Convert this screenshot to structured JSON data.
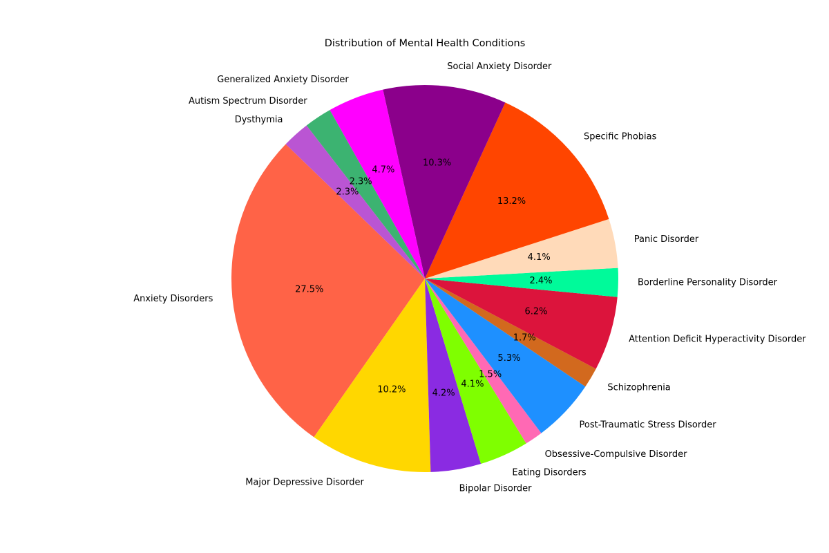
{
  "chart_data": {
    "type": "pie",
    "title": "Distribution of Mental Health Conditions",
    "start_angle_deg": 136,
    "direction": "counterclockwise",
    "slices": [
      {
        "label": "Anxiety Disorders",
        "value": 27.5,
        "pct_label": "27.5%",
        "color": "#FF6347"
      },
      {
        "label": "Major Depressive Disorder",
        "value": 10.2,
        "pct_label": "10.2%",
        "color": "#FFD700"
      },
      {
        "label": "Bipolar Disorder",
        "value": 4.2,
        "pct_label": "4.2%",
        "color": "#8A2BE2"
      },
      {
        "label": "Eating Disorders",
        "value": 4.1,
        "pct_label": "4.1%",
        "color": "#7FFF00"
      },
      {
        "label": "Obsessive-Compulsive Disorder",
        "value": 1.5,
        "pct_label": "1.5%",
        "color": "#FF69B4"
      },
      {
        "label": "Post-Traumatic Stress Disorder",
        "value": 5.3,
        "pct_label": "5.3%",
        "color": "#1E90FF"
      },
      {
        "label": "Schizophrenia",
        "value": 1.7,
        "pct_label": "1.7%",
        "color": "#D2691E"
      },
      {
        "label": "Attention Deficit Hyperactivity Disorder",
        "value": 6.2,
        "pct_label": "6.2%",
        "color": "#DC143C"
      },
      {
        "label": "Borderline Personality Disorder",
        "value": 2.4,
        "pct_label": "2.4%",
        "color": "#00FA9A"
      },
      {
        "label": "Panic Disorder",
        "value": 4.1,
        "pct_label": "4.1%",
        "color": "#FFDAB9"
      },
      {
        "label": "Specific Phobias",
        "value": 13.2,
        "pct_label": "13.2%",
        "color": "#FF4500"
      },
      {
        "label": "Social Anxiety Disorder",
        "value": 10.3,
        "pct_label": "10.3%",
        "color": "#8B008B"
      },
      {
        "label": "Generalized Anxiety Disorder",
        "value": 4.7,
        "pct_label": "4.7%",
        "color": "#FF00FF"
      },
      {
        "label": "Autism Spectrum Disorder",
        "value": 2.3,
        "pct_label": "2.3%",
        "color": "#3CB371"
      },
      {
        "label": "Dysthymia",
        "value": 2.3,
        "pct_label": "2.3%",
        "color": "#BA55D3"
      }
    ]
  }
}
